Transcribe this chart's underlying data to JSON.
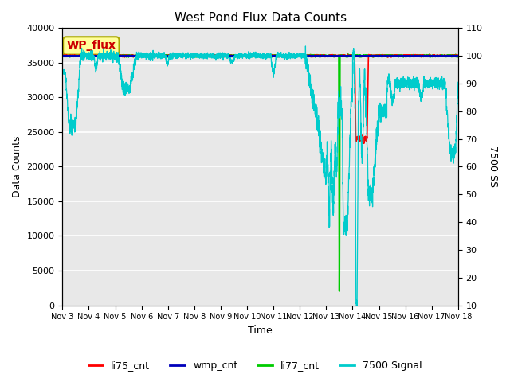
{
  "title": "West Pond Flux Data Counts",
  "xlabel": "Time",
  "ylabel_left": "Data Counts",
  "ylabel_right": "7500 SS",
  "left_ylim": [
    0,
    40000
  ],
  "right_ylim": [
    10,
    110
  ],
  "left_yticks": [
    0,
    5000,
    10000,
    15000,
    20000,
    25000,
    30000,
    35000,
    40000
  ],
  "right_yticks": [
    10,
    20,
    30,
    40,
    50,
    60,
    70,
    80,
    90,
    100,
    110
  ],
  "background_color": "#e8e8e8",
  "figure_bg": "#ffffff",
  "grid_color": "#ffffff",
  "legend_labels": [
    "li75_cnt",
    "wmp_cnt",
    "li77_cnt",
    "7500 Signal"
  ],
  "legend_colors": [
    "#ff0000",
    "#0000bb",
    "#00cc00",
    "#00cccc"
  ],
  "wp_flux_label": "WP_flux",
  "wp_flux_color": "#cc0000",
  "wp_flux_bg": "#ffff99",
  "wp_flux_border": "#aaa800",
  "xtick_labels": [
    "Nov 3",
    "Nov 4",
    "Nov 5",
    "Nov 6",
    "Nov 7",
    "Nov 8",
    "Nov 9",
    "Nov 10",
    "Nov 11",
    "Nov 12",
    "Nov 13",
    "Nov 14",
    "Nov 15",
    "Nov 16",
    "Nov 17",
    "Nov 18"
  ]
}
